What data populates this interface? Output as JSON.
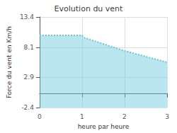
{
  "chart_data": {
    "type": "area",
    "title": "Evolution du vent",
    "xlabel": "heure par heure",
    "ylabel": "Force du vent en Km/h",
    "x": [
      0,
      1,
      1.05,
      2,
      3
    ],
    "values": [
      10.2,
      10.2,
      9.8,
      7.5,
      5.5
    ],
    "xlim": [
      0,
      3
    ],
    "xticks": [
      0,
      1,
      2,
      3
    ],
    "ylim": [
      -2.4,
      13.4
    ],
    "yticks": [
      -2.4,
      2.9,
      8.1,
      13.4
    ],
    "grid": true,
    "color": "#66c8dc",
    "line_style": "dotted"
  }
}
